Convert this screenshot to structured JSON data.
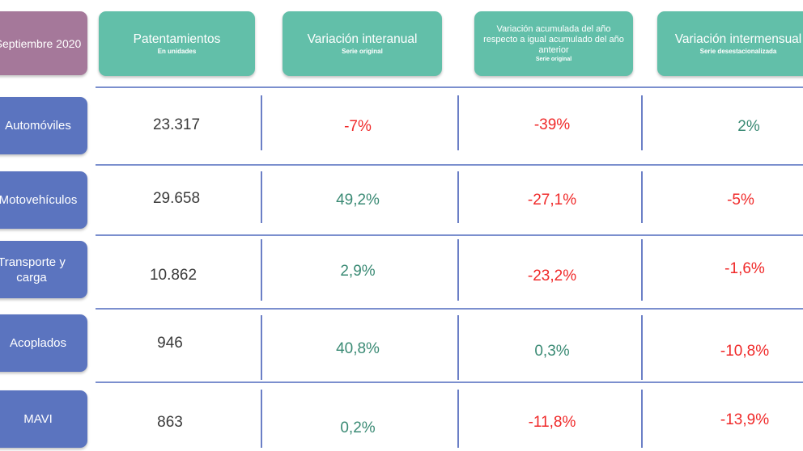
{
  "period": "Septiembre 2020",
  "headers": [
    {
      "title": "Patentamientos",
      "subtitle": "En unidades"
    },
    {
      "title": "Variación interanual",
      "subtitle": "Serie original"
    },
    {
      "title": "Variación acumulada del año respecto a igual acumulado del año anterior",
      "subtitle": "Serie original"
    },
    {
      "title": "Variación intermensual",
      "subtitle": "Serie desestacionalizada"
    }
  ],
  "rows": [
    {
      "label": "Automóviles",
      "units": "23.317",
      "yoy": "-7%",
      "ytd": "-39%",
      "mom": "2%"
    },
    {
      "label": "Motovehículos",
      "units": "29.658",
      "yoy": "49,2%",
      "ytd": "-27,1%",
      "mom": "-5%"
    },
    {
      "label": "Transporte y carga",
      "units": "10.862",
      "yoy": "2,9%",
      "ytd": "-23,2%",
      "mom": "-1,6%"
    },
    {
      "label": "Acoplados",
      "units": "946",
      "yoy": "40,8%",
      "ytd": "0,3%",
      "mom": "-10,8%"
    },
    {
      "label": "MAVI",
      "units": "863",
      "yoy": "0,2%",
      "ytd": "-11,8%",
      "mom": "-13,9%"
    }
  ],
  "colors": {
    "header": "#62bfa9",
    "period": "#a5789a",
    "row_label": "#5b74bf",
    "positive": "#3a8a74",
    "negative": "#f02a2a"
  }
}
